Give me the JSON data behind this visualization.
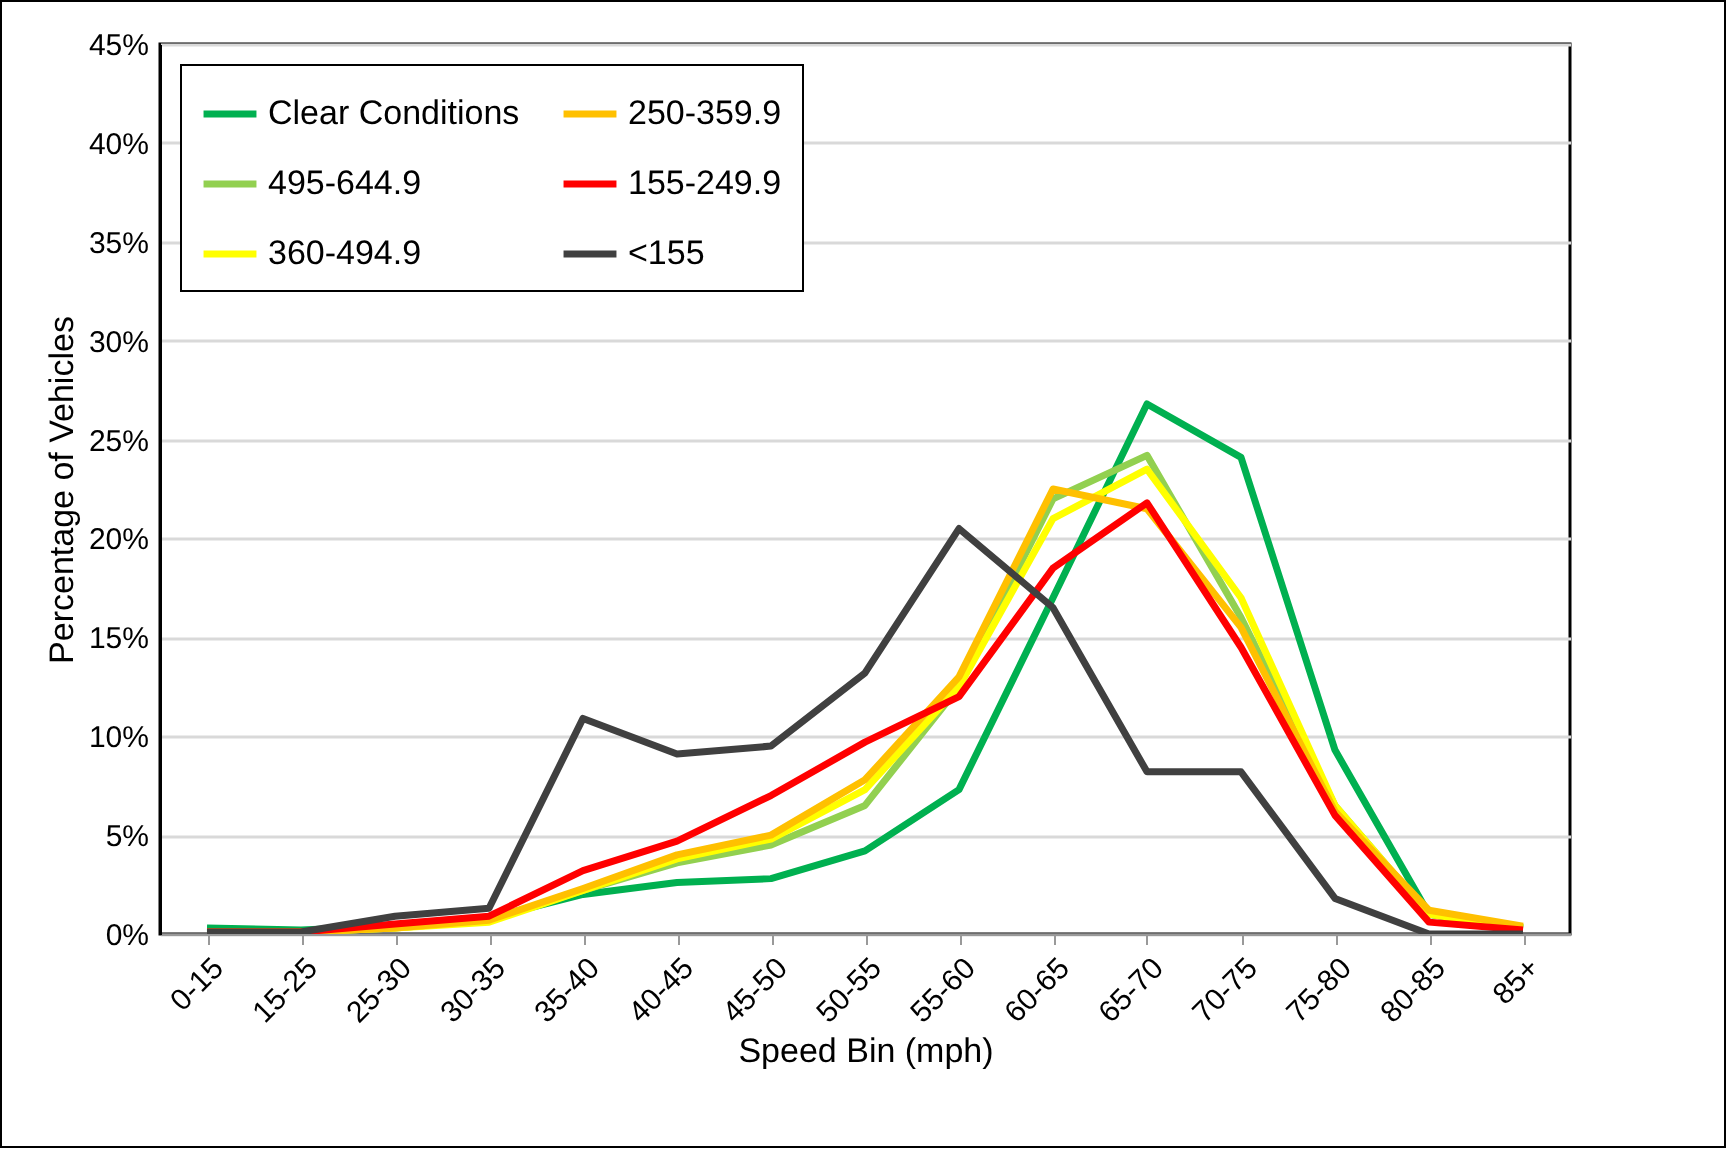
{
  "chart_data": {
    "type": "line",
    "xlabel": "Speed Bin (mph)",
    "ylabel": "Percentage of Vehicles",
    "categories": [
      "0-15",
      "15-25",
      "25-30",
      "30-35",
      "35-40",
      "40-45",
      "45-50",
      "50-55",
      "55-60",
      "60-65",
      "65-70",
      "70-75",
      "75-80",
      "80-85",
      "85+"
    ],
    "series": [
      {
        "name": "Clear Conditions",
        "color": "#00b050",
        "values": [
          0.3,
          0.2,
          0.4,
          0.8,
          2.0,
          2.6,
          2.8,
          4.2,
          7.3,
          17,
          26.8,
          24.1,
          9.3,
          1.0,
          0.3
        ]
      },
      {
        "name": "495-644.9",
        "color": "#92d050",
        "values": [
          0.1,
          0.1,
          0.3,
          0.7,
          2.2,
          3.6,
          4.5,
          6.5,
          12.5,
          22,
          24.2,
          16,
          6.5,
          1.0,
          0.3
        ]
      },
      {
        "name": "360-494.9",
        "color": "#ffff00",
        "values": [
          0.1,
          0.1,
          0.3,
          0.6,
          2.2,
          3.8,
          4.8,
          7.3,
          12.5,
          21,
          23.5,
          17,
          6.5,
          1.0,
          0.3
        ]
      },
      {
        "name": "250-359.9",
        "color": "#ffc000",
        "values": [
          0.1,
          0.1,
          0.3,
          0.7,
          2.3,
          4.0,
          5.0,
          7.8,
          13,
          22.5,
          21.5,
          15.5,
          6.2,
          1.2,
          0.4
        ]
      },
      {
        "name": "155-249.9",
        "color": "#ff0000",
        "values": [
          0.1,
          0.1,
          0.5,
          0.9,
          3.2,
          4.7,
          7.0,
          9.7,
          12.0,
          18.5,
          21.8,
          14.5,
          6.0,
          0.6,
          0.2
        ]
      },
      {
        "name": "<155",
        "color": "#404040",
        "values": [
          0.1,
          0.1,
          0.9,
          1.3,
          10.9,
          9.1,
          9.5,
          13.2,
          20.5,
          16.5,
          8.2,
          8.2,
          1.8,
          0.0,
          0.0
        ]
      }
    ],
    "ylim": [
      0,
      45
    ],
    "yticks": [
      {
        "value": 0,
        "label": "0%"
      },
      {
        "value": 5,
        "label": "5%"
      },
      {
        "value": 10,
        "label": "10%"
      },
      {
        "value": 15,
        "label": "15%"
      },
      {
        "value": 20,
        "label": "20%"
      },
      {
        "value": 25,
        "label": "25%"
      },
      {
        "value": 30,
        "label": "30%"
      },
      {
        "value": 35,
        "label": "35%"
      },
      {
        "value": 40,
        "label": "40%"
      },
      {
        "value": 45,
        "label": "45%"
      }
    ],
    "grid": "y",
    "legend": "top left",
    "marker": "none",
    "line_style": "solid"
  }
}
